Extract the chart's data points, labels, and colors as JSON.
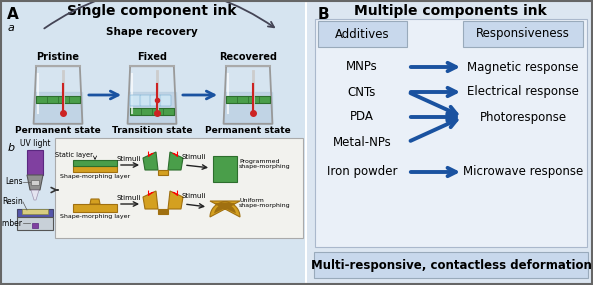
{
  "fig_width": 5.93,
  "fig_height": 2.85,
  "bg_color": "#ffffff",
  "panel_A_bg": "#d6e4f0",
  "panel_B_bg": "#dce6f1",
  "panel_B_inner_bg": "#e8f0f8",
  "title_A": "Single component ink",
  "title_B": "Multiple components ink",
  "label_A": "A",
  "label_B": "B",
  "label_a": "a",
  "label_b": "b",
  "additives_label": "Additives",
  "responsiveness_label": "Responsiveness",
  "additives_col": [
    "MNPs",
    "CNTs",
    "PDA",
    "Metal-NPs",
    "Iron powder"
  ],
  "response_col": [
    "Magnetic response",
    "Electrical response",
    "Photoresponse",
    "Microwave response"
  ],
  "footer_text": "Multi-responsive, contactless deformation",
  "arrow_color": "#1a52a0",
  "header_box_color": "#c8d8ec",
  "shape_recovery_text": "Shape recovery",
  "pristine_text": "Pristine",
  "fixed_text": "Fixed",
  "recovered_text": "Recovered",
  "perm1_text": "Permanent state",
  "trans_text": "Transition state",
  "perm2_text": "Permanent state",
  "glass_water_color": "#b0c8dc",
  "green_color": "#4a9e4a",
  "green_dark": "#2d6e2d",
  "green_light": "#6abf6a",
  "gold_color": "#d4a020",
  "gold_dark": "#a07010",
  "uv_purple": "#8040a0",
  "uv_gray": "#909090",
  "uv_light_gray": "#b8b8b8"
}
